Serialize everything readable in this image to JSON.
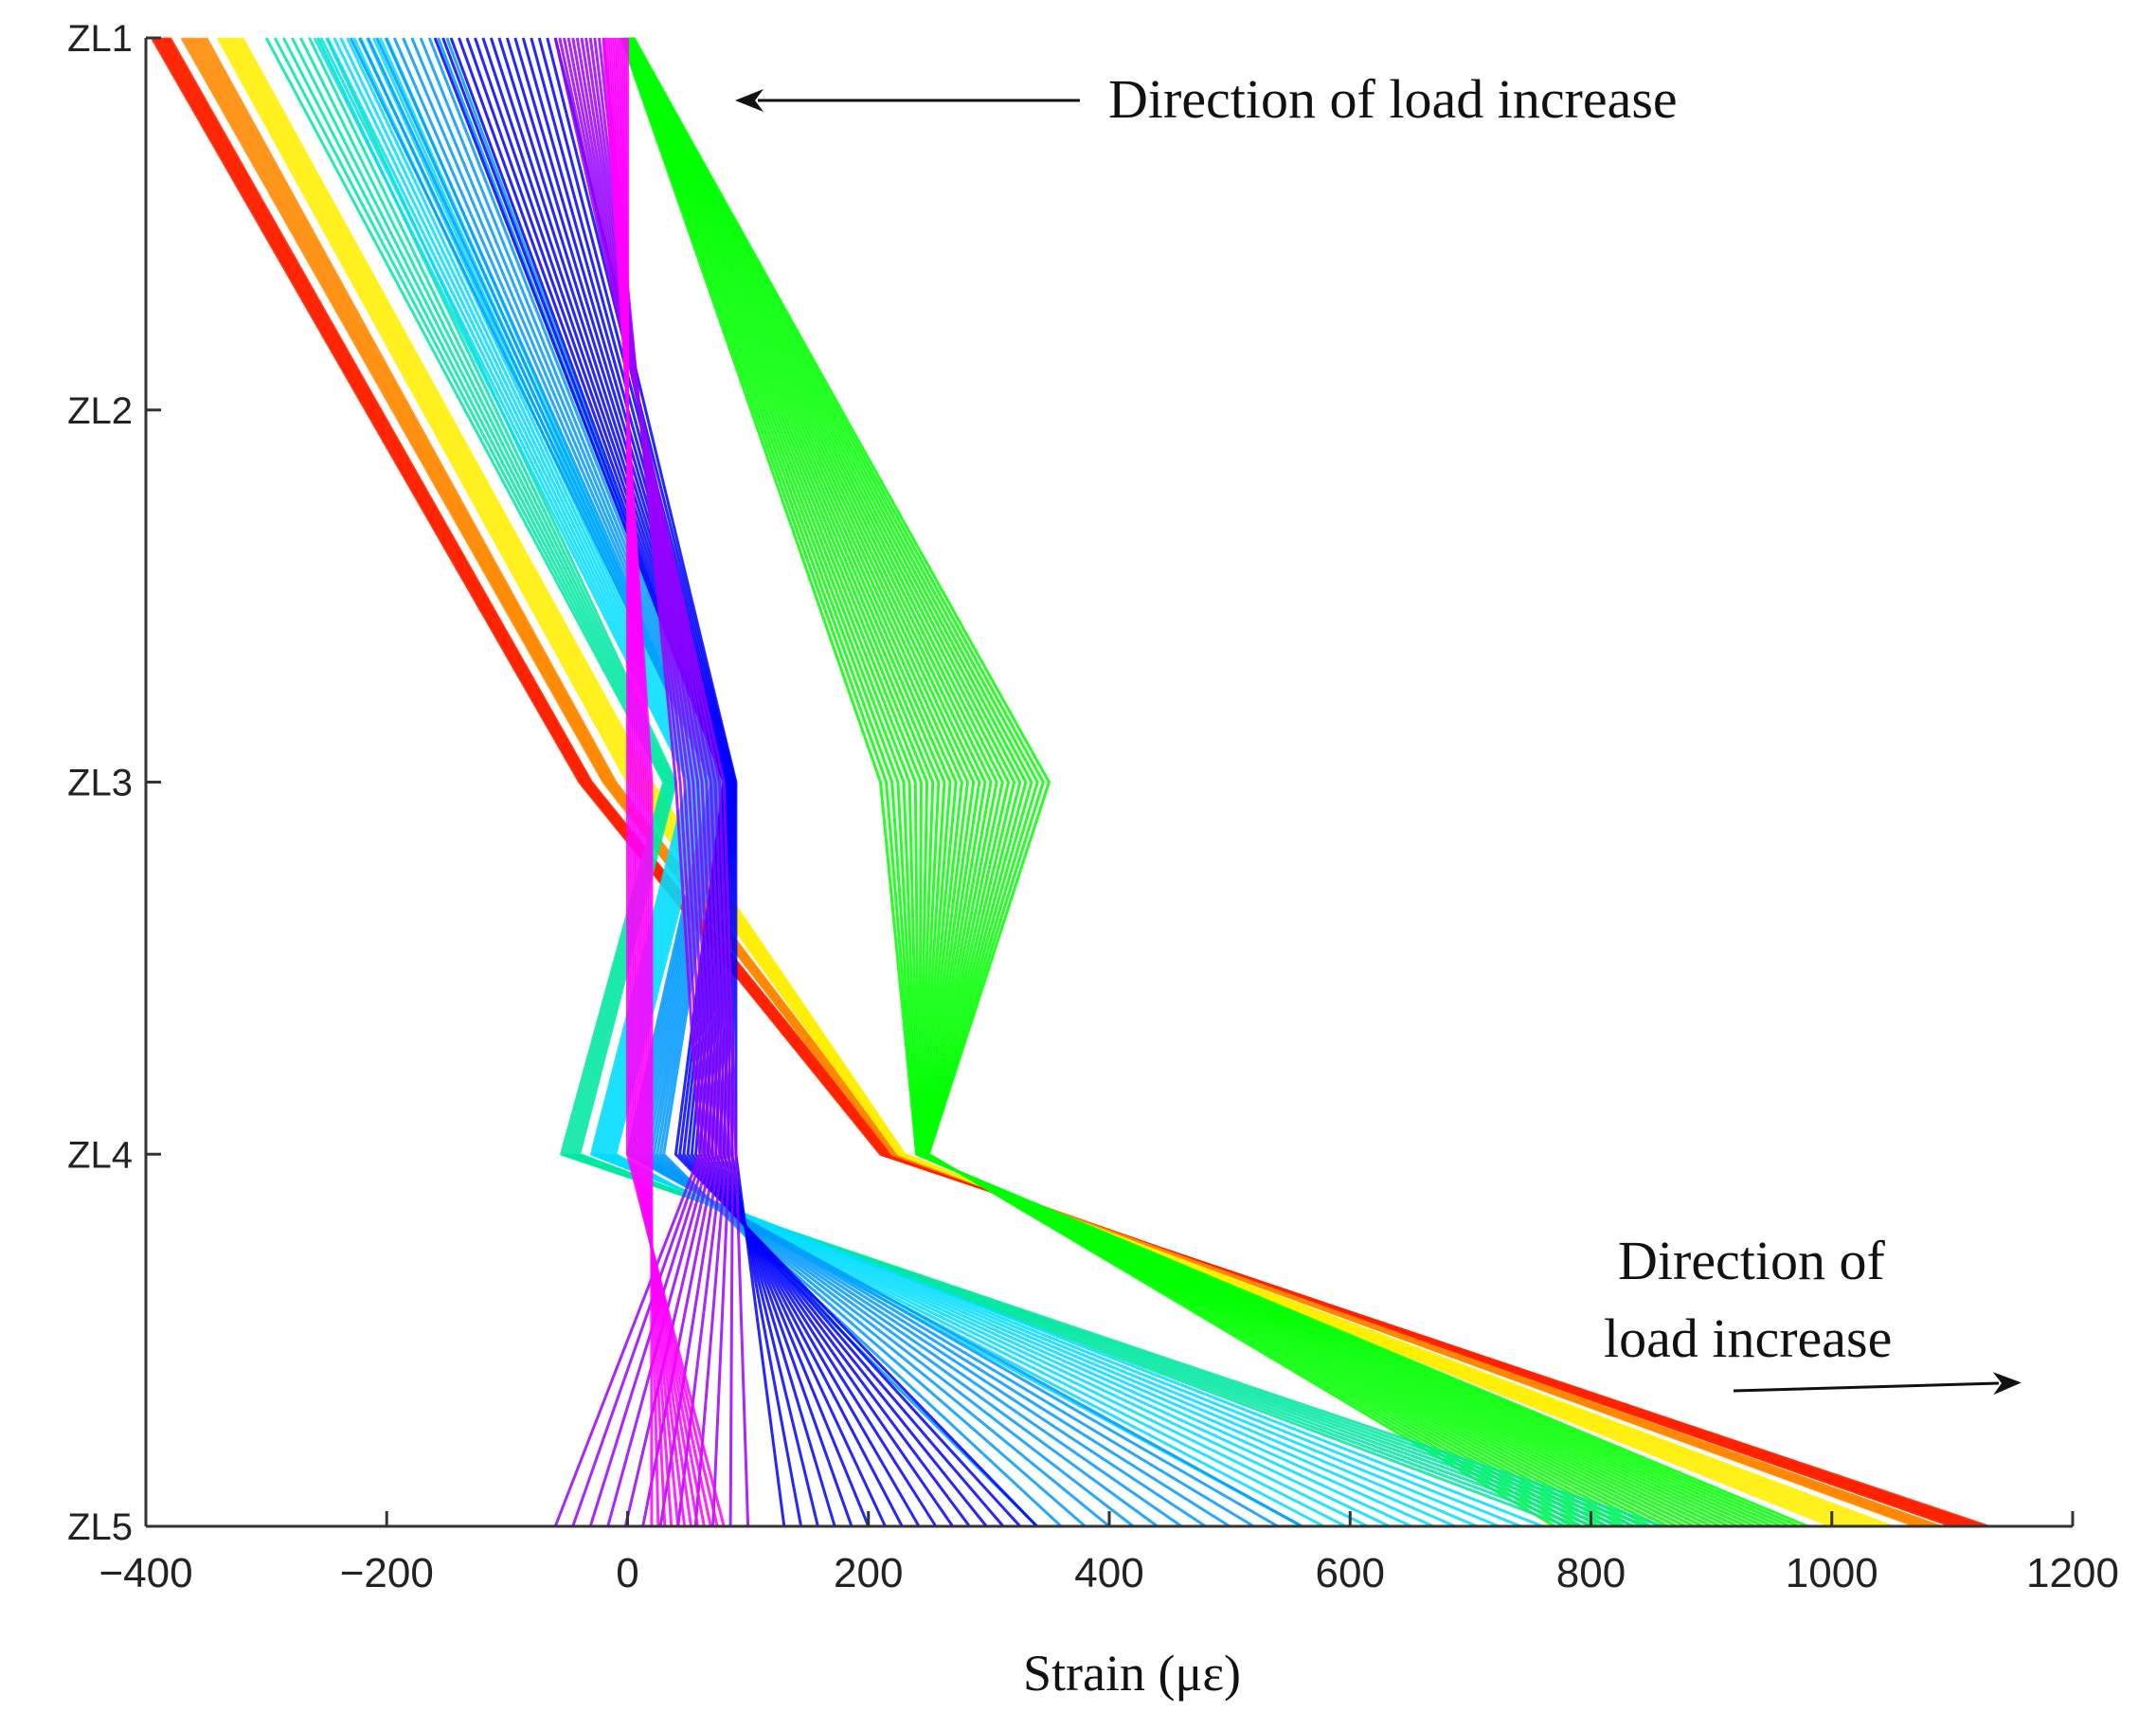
{
  "chart_data": {
    "type": "line",
    "orientation": "vertical-profile",
    "title": "",
    "xlabel": "Strain (με)",
    "ylabel": "",
    "xlim": [
      -400,
      1200
    ],
    "x_ticks": [
      -400,
      -200,
      0,
      200,
      400,
      600,
      800,
      1000,
      1200
    ],
    "categories": [
      "ZL1",
      "ZL2",
      "ZL3",
      "ZL4",
      "ZL5"
    ],
    "grid": false,
    "legend": "none",
    "color_scale": [
      "#ff2200",
      "#ff9900",
      "#ffff00",
      "#00ff00",
      "#00e8c0",
      "#00ffff",
      "#0088ff",
      "#0000ff",
      "#8800ff",
      "#ff00ff"
    ],
    "groups": [
      {
        "name": "red",
        "color": "#ff2200",
        "lines": 12,
        "start": [
          -395,
          null,
          -40,
          210,
          1130
        ],
        "end": [
          -380,
          null,
          -30,
          220,
          1100
        ]
      },
      {
        "name": "orange",
        "color": "#ff8800",
        "lines": 10,
        "start": [
          -370,
          null,
          -20,
          220,
          1090
        ],
        "end": [
          -350,
          null,
          -10,
          225,
          1070
        ]
      },
      {
        "name": "yellow",
        "color": "#ffee00",
        "lines": 10,
        "start": [
          -340,
          null,
          0,
          225,
          1050
        ],
        "end": [
          -320,
          null,
          20,
          230,
          1000
        ]
      },
      {
        "name": "green",
        "color": "#00ff00",
        "lines": 30,
        "start": [
          -5,
          null,
          210,
          240,
          980
        ],
        "end": [
          5,
          null,
          350,
          250,
          770
        ]
      },
      {
        "name": "teal",
        "color": "#00e8a0",
        "lines": 8,
        "start": [
          -300,
          null,
          30,
          -55,
          860
        ],
        "end": [
          -250,
          null,
          40,
          -40,
          780
        ]
      },
      {
        "name": "cyan",
        "color": "#00ddff",
        "lines": 12,
        "start": [
          -260,
          null,
          50,
          -30,
          760
        ],
        "end": [
          -200,
          null,
          70,
          -10,
          560
        ]
      },
      {
        "name": "sky-blue",
        "color": "#0099ff",
        "lines": 12,
        "start": [
          -230,
          null,
          70,
          0,
          560
        ],
        "end": [
          -150,
          null,
          80,
          30,
          340
        ]
      },
      {
        "name": "blue",
        "color": "#0000ff",
        "lines": 16,
        "start": [
          -160,
          null,
          80,
          40,
          340
        ],
        "end": [
          -60,
          null,
          90,
          90,
          130
        ]
      },
      {
        "name": "violet",
        "color": "#9900ff",
        "lines": 12,
        "start": [
          -60,
          null,
          80,
          90,
          100
        ],
        "end": [
          -20,
          null,
          40,
          60,
          -60
        ]
      },
      {
        "name": "magenta",
        "color": "#ff00ff",
        "lines": 12,
        "start": [
          -20,
          null,
          20,
          20,
          20
        ],
        "end": [
          0,
          null,
          0,
          0,
          80
        ]
      }
    ],
    "annotations": [
      {
        "text": "Direction of load increase",
        "arrow": "left"
      },
      {
        "text_line1": "Direction of",
        "text_line2": "load increase",
        "arrow": "right"
      }
    ]
  }
}
